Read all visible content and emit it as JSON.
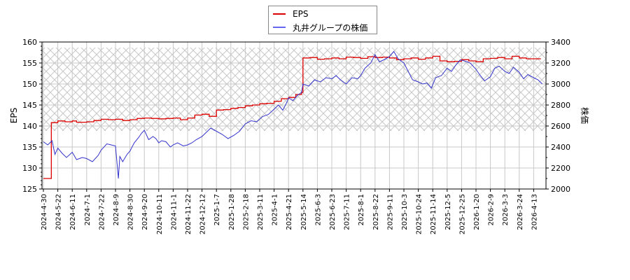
{
  "chart_data": {
    "type": "line",
    "title": "",
    "xlabel": "",
    "ylabel": "EPS",
    "ylabel_right": "株価",
    "ylim": [
      125,
      160
    ],
    "ylim_right": [
      2000,
      3400
    ],
    "yticks_left": [
      125,
      130,
      135,
      140,
      145,
      150,
      155,
      160
    ],
    "yticks_right": [
      2000,
      2200,
      2400,
      2600,
      2800,
      3000,
      3200,
      3400
    ],
    "grid": true,
    "legend_position": "top-center",
    "hatched_band_right_axis": [
      2580,
      3330
    ],
    "x_tick_labels": [
      "2024-4-30",
      "2024-5-22",
      "2024-6-11",
      "2024-7-1",
      "2024-7-22",
      "2024-8-9",
      "2024-8-30",
      "2024-9-20",
      "2024-10-11",
      "2024-11-1",
      "2024-11-22",
      "2024-12-12",
      "2025-1-7",
      "2025-1-28",
      "2025-2-18",
      "2025-3-11",
      "2025-4-1",
      "2025-4-21",
      "2025-5-14",
      "2025-6-3",
      "2025-6-23",
      "2025-7-11",
      "2025-8-1",
      "2025-8-22",
      "2025-9-11",
      "2025-10-3",
      "2025-10-24",
      "2025-11-14",
      "2025-12-5",
      "2025-12-25",
      "2026-1-20",
      "2026-2-9",
      "2026-3-3",
      "2026-3-24",
      "2026-4-13"
    ],
    "series": [
      {
        "name": "EPS",
        "axis": "left",
        "color": "#dd0000",
        "points_by_tick_index": [
          [
            0,
            127.5
          ],
          [
            0.5,
            127.5
          ],
          [
            0.55,
            140.8
          ],
          [
            1.0,
            141.2
          ],
          [
            1.5,
            141.0
          ],
          [
            2.0,
            141.2
          ],
          [
            2.3,
            140.9
          ],
          [
            3.0,
            141.0
          ],
          [
            3.5,
            141.3
          ],
          [
            4.0,
            141.6
          ],
          [
            4.5,
            141.5
          ],
          [
            5.0,
            141.6
          ],
          [
            5.5,
            141.3
          ],
          [
            6.0,
            141.5
          ],
          [
            6.5,
            141.8
          ],
          [
            7.0,
            141.9
          ],
          [
            7.5,
            141.8
          ],
          [
            8.0,
            141.7
          ],
          [
            8.5,
            141.8
          ],
          [
            9.0,
            141.9
          ],
          [
            9.5,
            141.5
          ],
          [
            10.0,
            141.9
          ],
          [
            10.5,
            142.6
          ],
          [
            11.0,
            142.8
          ],
          [
            11.5,
            142.3
          ],
          [
            12.0,
            143.8
          ],
          [
            12.5,
            143.9
          ],
          [
            13.0,
            144.2
          ],
          [
            13.5,
            144.4
          ],
          [
            14.0,
            144.8
          ],
          [
            14.5,
            145.0
          ],
          [
            15.0,
            145.3
          ],
          [
            15.5,
            145.4
          ],
          [
            16.0,
            145.9
          ],
          [
            16.5,
            146.5
          ],
          [
            17.0,
            146.8
          ],
          [
            17.5,
            147.5
          ],
          [
            17.9,
            148.0
          ],
          [
            18.0,
            156.2
          ],
          [
            18.5,
            156.3
          ],
          [
            19.0,
            155.9
          ],
          [
            19.5,
            156.0
          ],
          [
            20.0,
            156.2
          ],
          [
            20.5,
            156.0
          ],
          [
            21.0,
            156.4
          ],
          [
            21.5,
            156.3
          ],
          [
            22.0,
            156.1
          ],
          [
            22.5,
            156.5
          ],
          [
            23.0,
            156.3
          ],
          [
            23.5,
            156.4
          ],
          [
            24.0,
            156.2
          ],
          [
            24.5,
            155.8
          ],
          [
            25.0,
            156.0
          ],
          [
            25.5,
            156.2
          ],
          [
            26.0,
            155.9
          ],
          [
            26.5,
            156.2
          ],
          [
            27.0,
            156.6
          ],
          [
            27.5,
            155.5
          ],
          [
            28.0,
            155.3
          ],
          [
            28.5,
            155.4
          ],
          [
            29.0,
            155.8
          ],
          [
            29.5,
            155.5
          ],
          [
            30.0,
            155.3
          ],
          [
            30.5,
            156.0
          ],
          [
            31.0,
            156.1
          ],
          [
            31.5,
            156.3
          ],
          [
            32.0,
            156.0
          ],
          [
            32.5,
            156.6
          ],
          [
            33.0,
            156.2
          ],
          [
            33.5,
            156.0
          ],
          [
            34.0,
            156.0
          ],
          [
            34.5,
            156.0
          ]
        ]
      },
      {
        "name": "丸井グループの株価",
        "axis": "right",
        "color": "#3333cc",
        "points_by_tick_index": [
          [
            0,
            2450
          ],
          [
            0.3,
            2420
          ],
          [
            0.6,
            2460
          ],
          [
            0.8,
            2330
          ],
          [
            1.0,
            2390
          ],
          [
            1.3,
            2340
          ],
          [
            1.6,
            2300
          ],
          [
            2.0,
            2350
          ],
          [
            2.3,
            2280
          ],
          [
            2.7,
            2300
          ],
          [
            3.0,
            2290
          ],
          [
            3.4,
            2260
          ],
          [
            3.8,
            2320
          ],
          [
            4.0,
            2370
          ],
          [
            4.4,
            2430
          ],
          [
            4.7,
            2420
          ],
          [
            5.0,
            2410
          ],
          [
            5.2,
            2100
          ],
          [
            5.3,
            2310
          ],
          [
            5.5,
            2260
          ],
          [
            5.8,
            2330
          ],
          [
            6.0,
            2360
          ],
          [
            6.3,
            2440
          ],
          [
            6.6,
            2490
          ],
          [
            6.8,
            2530
          ],
          [
            7.0,
            2560
          ],
          [
            7.3,
            2470
          ],
          [
            7.6,
            2500
          ],
          [
            7.8,
            2480
          ],
          [
            8.0,
            2440
          ],
          [
            8.2,
            2460
          ],
          [
            8.5,
            2450
          ],
          [
            8.8,
            2400
          ],
          [
            9.0,
            2420
          ],
          [
            9.3,
            2440
          ],
          [
            9.7,
            2410
          ],
          [
            10.0,
            2420
          ],
          [
            10.3,
            2440
          ],
          [
            10.6,
            2470
          ],
          [
            11.0,
            2500
          ],
          [
            11.3,
            2540
          ],
          [
            11.6,
            2580
          ],
          [
            12.0,
            2550
          ],
          [
            12.4,
            2520
          ],
          [
            12.8,
            2480
          ],
          [
            13.2,
            2510
          ],
          [
            13.6,
            2550
          ],
          [
            14.0,
            2620
          ],
          [
            14.4,
            2650
          ],
          [
            14.8,
            2640
          ],
          [
            15.2,
            2690
          ],
          [
            15.6,
            2710
          ],
          [
            16.0,
            2760
          ],
          [
            16.3,
            2800
          ],
          [
            16.6,
            2750
          ],
          [
            16.9,
            2830
          ],
          [
            17.0,
            2870
          ],
          [
            17.3,
            2840
          ],
          [
            17.6,
            2890
          ],
          [
            17.9,
            2920
          ],
          [
            18.0,
            3000
          ],
          [
            18.4,
            2980
          ],
          [
            18.8,
            3040
          ],
          [
            19.2,
            3020
          ],
          [
            19.6,
            3060
          ],
          [
            20.0,
            3050
          ],
          [
            20.3,
            3080
          ],
          [
            20.6,
            3040
          ],
          [
            21.0,
            3000
          ],
          [
            21.4,
            3060
          ],
          [
            21.8,
            3050
          ],
          [
            22.0,
            3080
          ],
          [
            22.3,
            3150
          ],
          [
            22.7,
            3200
          ],
          [
            23.0,
            3280
          ],
          [
            23.3,
            3210
          ],
          [
            23.6,
            3230
          ],
          [
            24.0,
            3260
          ],
          [
            24.3,
            3310
          ],
          [
            24.6,
            3240
          ],
          [
            25.0,
            3200
          ],
          [
            25.3,
            3120
          ],
          [
            25.6,
            3040
          ],
          [
            26.0,
            3020
          ],
          [
            26.3,
            3000
          ],
          [
            26.6,
            3010
          ],
          [
            26.9,
            2960
          ],
          [
            27.2,
            3060
          ],
          [
            27.6,
            3080
          ],
          [
            28.0,
            3150
          ],
          [
            28.3,
            3120
          ],
          [
            28.6,
            3180
          ],
          [
            28.9,
            3230
          ],
          [
            29.2,
            3220
          ],
          [
            29.6,
            3200
          ],
          [
            30.0,
            3140
          ],
          [
            30.3,
            3080
          ],
          [
            30.6,
            3030
          ],
          [
            31.0,
            3070
          ],
          [
            31.3,
            3150
          ],
          [
            31.6,
            3170
          ],
          [
            32.0,
            3120
          ],
          [
            32.3,
            3100
          ],
          [
            32.6,
            3160
          ],
          [
            33.0,
            3110
          ],
          [
            33.3,
            3050
          ],
          [
            33.6,
            3090
          ],
          [
            34.0,
            3060
          ],
          [
            34.3,
            3040
          ],
          [
            34.6,
            3000
          ]
        ]
      }
    ]
  },
  "legend": {
    "items": [
      {
        "label": "EPS",
        "color": "#dd0000"
      },
      {
        "label": "丸井グループの株価",
        "color": "#3333cc"
      }
    ]
  },
  "axes": {
    "left_title": "EPS",
    "right_title": "株価"
  }
}
